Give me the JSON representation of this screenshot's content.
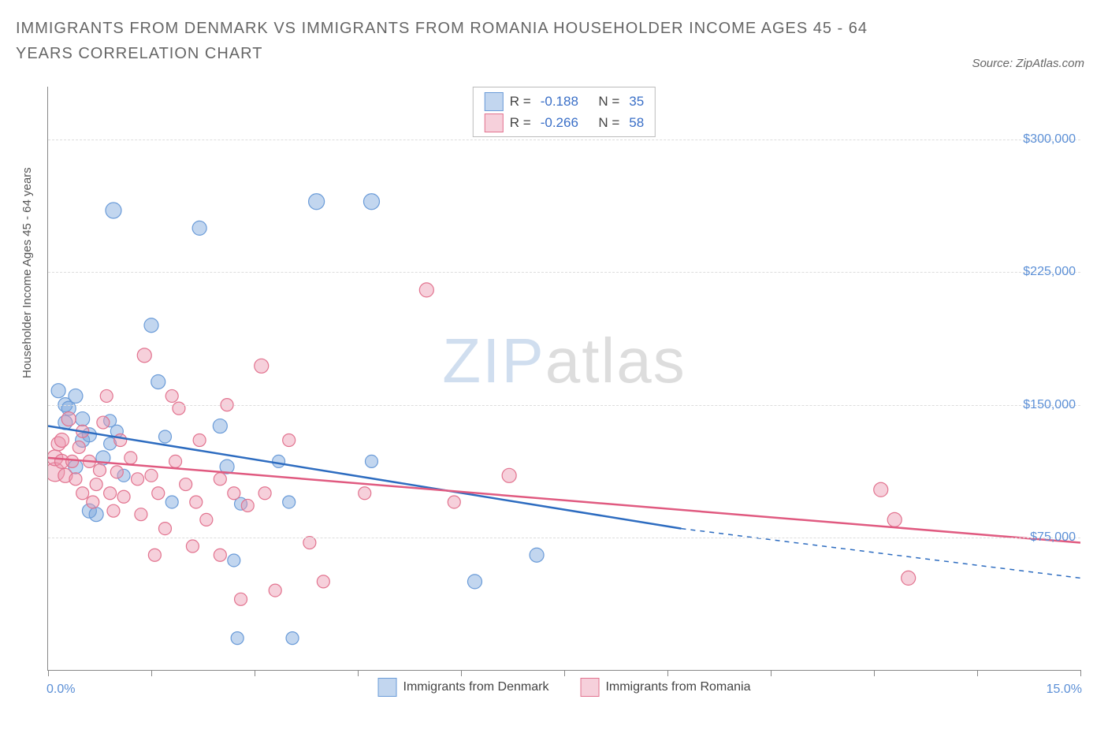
{
  "title": "IMMIGRANTS FROM DENMARK VS IMMIGRANTS FROM ROMANIA HOUSEHOLDER INCOME AGES 45 - 64 YEARS CORRELATION CHART",
  "source": "Source: ZipAtlas.com",
  "ylabel": "Householder Income Ages 45 - 64 years",
  "watermark": {
    "part1": "ZIP",
    "part2": "atlas"
  },
  "chart": {
    "type": "scatter",
    "xlim": [
      0,
      15
    ],
    "ylim": [
      0,
      330000
    ],
    "x_unit": "percent",
    "x_min_label": "0.0%",
    "x_max_label": "15.0%",
    "y_ticks": [
      75000,
      150000,
      225000,
      300000
    ],
    "y_tick_labels": [
      "$75,000",
      "$150,000",
      "$225,000",
      "$300,000"
    ],
    "x_tick_positions": [
      0,
      1.5,
      3.0,
      4.5,
      6.0,
      7.5,
      9.0,
      10.5,
      12.0,
      13.5,
      15.0
    ],
    "grid_color": "#dddddd",
    "background_color": "#ffffff",
    "series": [
      {
        "name": "Immigrants from Denmark",
        "fill": "rgba(120,165,220,0.45)",
        "stroke": "#6a9bd8",
        "line_color": "#2d6cc0",
        "R": "-0.188",
        "N": "35",
        "trend": {
          "x1": 0,
          "y1": 138000,
          "x2": 9.2,
          "y2": 80000,
          "dash_x2": 15,
          "dash_y2": 52000
        },
        "points": [
          [
            0.15,
            158000,
            9
          ],
          [
            0.25,
            140000,
            9
          ],
          [
            0.25,
            150000,
            9
          ],
          [
            0.3,
            148000,
            9
          ],
          [
            0.4,
            155000,
            9
          ],
          [
            0.5,
            142000,
            9
          ],
          [
            0.5,
            130000,
            9
          ],
          [
            0.6,
            133000,
            9
          ],
          [
            0.4,
            115000,
            9
          ],
          [
            0.6,
            90000,
            9
          ],
          [
            0.7,
            88000,
            9
          ],
          [
            0.8,
            120000,
            9
          ],
          [
            0.9,
            141000,
            8
          ],
          [
            0.9,
            128000,
            8
          ],
          [
            1.0,
            135000,
            8
          ],
          [
            1.1,
            110000,
            8
          ],
          [
            0.95,
            260000,
            10
          ],
          [
            1.5,
            195000,
            9
          ],
          [
            1.6,
            163000,
            9
          ],
          [
            1.7,
            132000,
            8
          ],
          [
            1.8,
            95000,
            8
          ],
          [
            2.2,
            250000,
            9
          ],
          [
            2.5,
            138000,
            9
          ],
          [
            2.6,
            115000,
            9
          ],
          [
            2.7,
            62000,
            8
          ],
          [
            2.75,
            18000,
            8
          ],
          [
            2.8,
            94000,
            8
          ],
          [
            3.35,
            118000,
            8
          ],
          [
            3.5,
            95000,
            8
          ],
          [
            3.55,
            18000,
            8
          ],
          [
            3.9,
            265000,
            10
          ],
          [
            4.7,
            265000,
            10
          ],
          [
            4.7,
            118000,
            8
          ],
          [
            6.2,
            50000,
            9
          ],
          [
            7.1,
            65000,
            9
          ]
        ]
      },
      {
        "name": "Immigrants from Romania",
        "fill": "rgba(235,150,175,0.45)",
        "stroke": "#e2738f",
        "line_color": "#e05a80",
        "R": "-0.266",
        "N": "58",
        "trend": {
          "x1": 0,
          "y1": 120000,
          "x2": 15,
          "y2": 72000
        },
        "points": [
          [
            0.1,
            112000,
            12
          ],
          [
            0.1,
            120000,
            10
          ],
          [
            0.15,
            128000,
            9
          ],
          [
            0.2,
            130000,
            9
          ],
          [
            0.2,
            118000,
            9
          ],
          [
            0.25,
            110000,
            9
          ],
          [
            0.3,
            142000,
            9
          ],
          [
            0.35,
            118000,
            8
          ],
          [
            0.4,
            108000,
            8
          ],
          [
            0.45,
            126000,
            8
          ],
          [
            0.5,
            100000,
            8
          ],
          [
            0.5,
            135000,
            8
          ],
          [
            0.6,
            118000,
            8
          ],
          [
            0.65,
            95000,
            8
          ],
          [
            0.7,
            105000,
            8
          ],
          [
            0.75,
            113000,
            8
          ],
          [
            0.8,
            140000,
            8
          ],
          [
            0.85,
            155000,
            8
          ],
          [
            0.9,
            100000,
            8
          ],
          [
            0.95,
            90000,
            8
          ],
          [
            1.0,
            112000,
            8
          ],
          [
            1.05,
            130000,
            8
          ],
          [
            1.1,
            98000,
            8
          ],
          [
            1.2,
            120000,
            8
          ],
          [
            1.3,
            108000,
            8
          ],
          [
            1.35,
            88000,
            8
          ],
          [
            1.4,
            178000,
            9
          ],
          [
            1.5,
            110000,
            8
          ],
          [
            1.55,
            65000,
            8
          ],
          [
            1.6,
            100000,
            8
          ],
          [
            1.7,
            80000,
            8
          ],
          [
            1.8,
            155000,
            8
          ],
          [
            1.85,
            118000,
            8
          ],
          [
            1.9,
            148000,
            8
          ],
          [
            2.0,
            105000,
            8
          ],
          [
            2.1,
            70000,
            8
          ],
          [
            2.15,
            95000,
            8
          ],
          [
            2.2,
            130000,
            8
          ],
          [
            2.3,
            85000,
            8
          ],
          [
            2.5,
            65000,
            8
          ],
          [
            2.5,
            108000,
            8
          ],
          [
            2.6,
            150000,
            8
          ],
          [
            2.7,
            100000,
            8
          ],
          [
            2.8,
            40000,
            8
          ],
          [
            2.9,
            93000,
            8
          ],
          [
            3.1,
            172000,
            9
          ],
          [
            3.15,
            100000,
            8
          ],
          [
            3.3,
            45000,
            8
          ],
          [
            3.5,
            130000,
            8
          ],
          [
            3.8,
            72000,
            8
          ],
          [
            4.0,
            50000,
            8
          ],
          [
            4.6,
            100000,
            8
          ],
          [
            5.5,
            215000,
            9
          ],
          [
            5.9,
            95000,
            8
          ],
          [
            6.7,
            110000,
            9
          ],
          [
            12.1,
            102000,
            9
          ],
          [
            12.3,
            85000,
            9
          ],
          [
            12.5,
            52000,
            9
          ]
        ]
      }
    ]
  },
  "legend_box": {
    "r_label": "R =",
    "n_label": "N ="
  }
}
